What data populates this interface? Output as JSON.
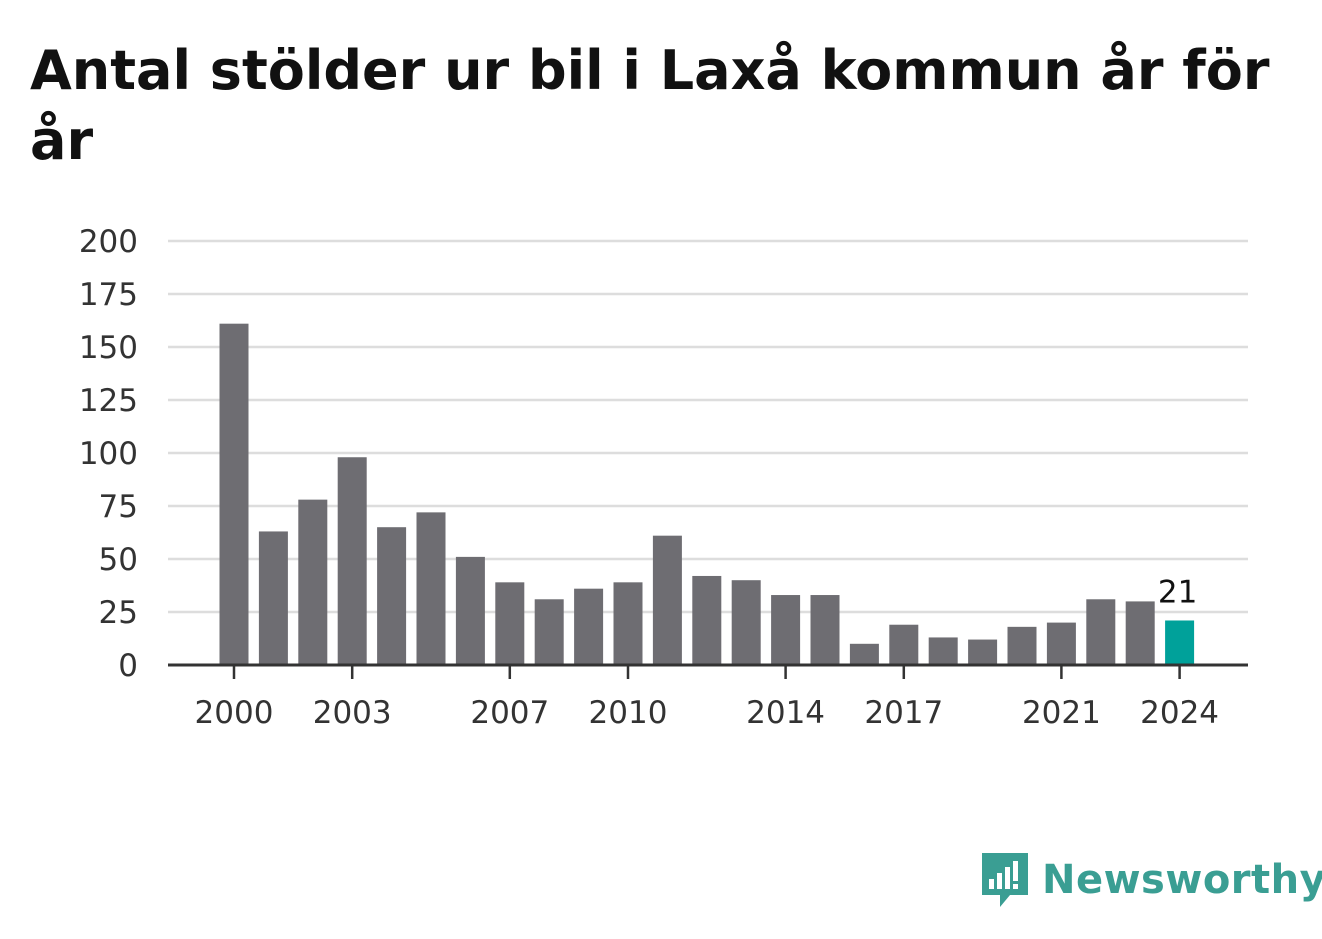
{
  "title": "Antal stölder ur bil i Laxå kommun år för år",
  "brand": {
    "name": "Newsworthy",
    "icon": "newsworthy-logo-icon",
    "color": "#3a9e93"
  },
  "chart_data": {
    "type": "bar",
    "title": "Antal stölder ur bil i Laxå kommun år för år",
    "xlabel": "",
    "ylabel": "",
    "ylim": [
      0,
      200
    ],
    "yticks": [
      0,
      25,
      50,
      75,
      100,
      125,
      150,
      175,
      200
    ],
    "xtick_labels": [
      "2000",
      "2003",
      "2007",
      "2010",
      "2014",
      "2017",
      "2021",
      "2024"
    ],
    "grid": true,
    "colors": {
      "bar": "#6e6d72",
      "highlight": "#00a19a",
      "grid": "#dddddd",
      "axis": "#333333"
    },
    "categories": [
      "2000",
      "2001",
      "2002",
      "2003",
      "2004",
      "2005",
      "2006",
      "2007",
      "2008",
      "2009",
      "2010",
      "2011",
      "2012",
      "2013",
      "2014",
      "2015",
      "2016",
      "2017",
      "2018",
      "2019",
      "2020",
      "2021",
      "2022",
      "2023",
      "2024"
    ],
    "values": [
      161,
      63,
      78,
      98,
      65,
      72,
      51,
      39,
      31,
      36,
      39,
      61,
      42,
      40,
      33,
      33,
      10,
      19,
      13,
      12,
      18,
      20,
      31,
      30,
      21
    ],
    "highlight_index": 24,
    "annotations": [
      {
        "category": "2024",
        "text": "21"
      }
    ]
  }
}
